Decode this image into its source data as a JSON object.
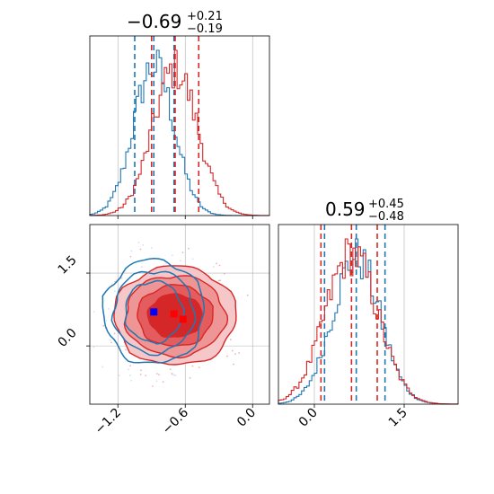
{
  "figure": {
    "panel_titles": [
      {
        "main": "−0.69",
        "sup": "+0.21",
        "sub": "−0.19"
      },
      {
        "main": "0.59",
        "sup": "+0.45",
        "sub": "−0.48"
      }
    ]
  },
  "colors": {
    "series_blue": "#1f77b4",
    "series_red": "#d62728",
    "grid": "#b0b0b0"
  },
  "chart_data": [
    {
      "type": "histogram",
      "panel": "marginal-param-1",
      "title": "−0.69 +0.21 −0.19",
      "x_ticks": [
        "−1.2",
        "−0.6",
        "0.0"
      ],
      "x_tick_values": [
        -1.2,
        -0.6,
        0.0
      ],
      "xlim": [
        -1.45,
        0.15
      ],
      "series": [
        {
          "color": "#1f77b4",
          "center": -0.88,
          "sd": 0.18,
          "quantiles": [
            -1.05,
            -0.7
          ]
        },
        {
          "color": "#d62728",
          "center": -0.69,
          "sd": 0.2,
          "quantiles": [
            -0.9,
            -0.48
          ]
        }
      ],
      "grid": true
    },
    {
      "type": "histogram",
      "panel": "marginal-param-2",
      "title": "0.59 +0.45 −0.48",
      "x_ticks": [
        "0.0",
        "1.5"
      ],
      "x_tick_values": [
        0.0,
        1.5
      ],
      "xlim": [
        -0.6,
        2.4
      ],
      "series": [
        {
          "color": "#1f77b4",
          "center": 0.7,
          "sd": 0.4,
          "quantiles": [
            0.17,
            1.18
          ]
        },
        {
          "color": "#d62728",
          "center": 0.62,
          "sd": 0.44,
          "quantiles": [
            0.11,
            1.05
          ]
        }
      ],
      "grid": true
    },
    {
      "type": "contour",
      "panel": "joint-param-1-vs-param-2",
      "x_ticks": [
        "−1.2",
        "−0.6",
        "0.0"
      ],
      "x_tick_values": [
        -1.2,
        -0.6,
        0.0
      ],
      "y_ticks": [
        "0.0",
        "1.5"
      ],
      "y_tick_values": [
        0.0,
        1.5
      ],
      "xlim": [
        -1.45,
        0.15
      ],
      "ylim": [
        -1.2,
        2.5
      ],
      "series": [
        {
          "color": "#1f77b4",
          "center": [
            -0.88,
            0.7
          ],
          "filled": false
        },
        {
          "color": "#d62728",
          "center": [
            -0.69,
            0.62
          ],
          "filled": true
        }
      ],
      "markers": [
        {
          "color": "#0000ff",
          "x": -0.88,
          "y": 0.7
        },
        {
          "color": "#ff0000",
          "x": -0.7,
          "y": 0.66
        },
        {
          "color": "#ff0000",
          "x": -0.62,
          "y": 0.55
        }
      ],
      "grid": true
    }
  ]
}
